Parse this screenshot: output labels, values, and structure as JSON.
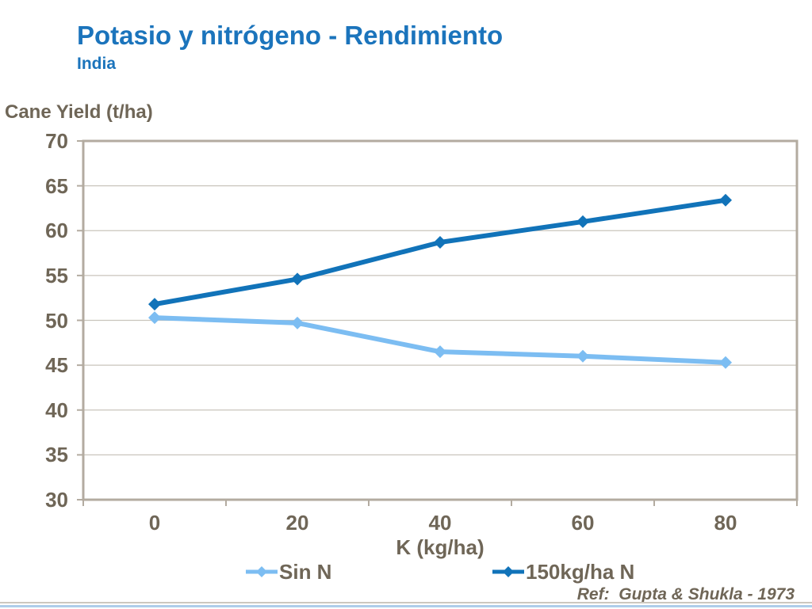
{
  "header": {
    "title": "Potasio y nitrógeno - Rendimiento",
    "subtitle": "India"
  },
  "chart_data": {
    "type": "line",
    "title": "Potasio y nitrógeno - Rendimiento (India)",
    "x": [
      0,
      20,
      40,
      60,
      80
    ],
    "xlabel": "K (kg/ha)",
    "ylabel": "Cane Yield (t/ha)",
    "ylim": [
      30,
      70
    ],
    "yticks": [
      70,
      65,
      60,
      55,
      50,
      45,
      40,
      35,
      30
    ],
    "grid": true,
    "legend_position": "bottom",
    "series": [
      {
        "name": "Sin N",
        "marker": "diamond",
        "color": "#7cbdf2",
        "values": [
          50.3,
          49.7,
          46.5,
          46.0,
          45.3
        ]
      },
      {
        "name": "150kg/ha N",
        "marker": "diamond",
        "color": "#1173b9",
        "values": [
          51.8,
          54.6,
          58.7,
          61.0,
          63.4
        ]
      }
    ]
  },
  "footer": {
    "reference": "Ref:  Gupta & Shukla - 1973"
  },
  "colors": {
    "title_blue": "#1b74bc",
    "axis_text": "#6f6657",
    "frame": "#b3aba0",
    "gridline": "#c9c4bc",
    "footer_gray": "#ccc7bf",
    "footer_blue": "#aecdea"
  }
}
